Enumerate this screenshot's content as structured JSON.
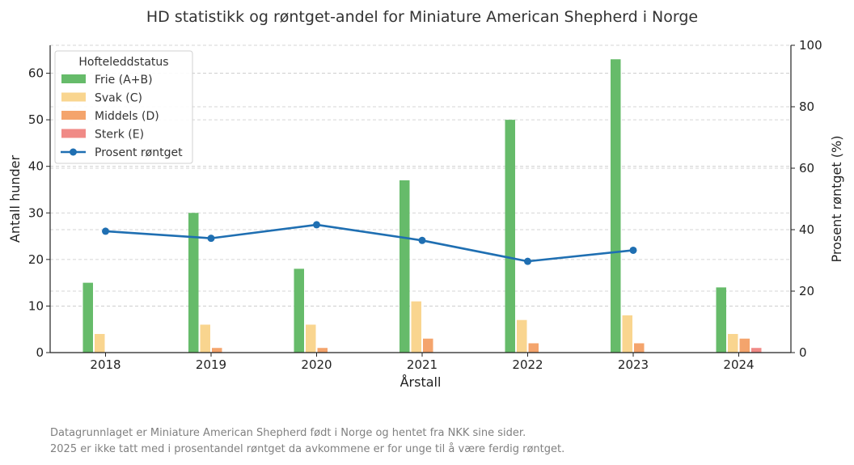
{
  "chart_data": {
    "type": "bar",
    "title": "HD statistikk og røntget-andel for Miniature American Shepherd i Norge",
    "xlabel": "Årstall",
    "ylabel": "Antall hunder",
    "y2label": "Prosent røntget (%)",
    "categories": [
      "2018",
      "2019",
      "2020",
      "2021",
      "2022",
      "2023",
      "2024"
    ],
    "ylim": [
      0,
      66
    ],
    "y2lim": [
      0,
      100
    ],
    "yticks": [
      "0",
      "10",
      "20",
      "30",
      "40",
      "50",
      "60"
    ],
    "y2ticks": [
      "0",
      "20",
      "40",
      "60",
      "80",
      "100"
    ],
    "grid": true,
    "legend_title": "Hofteleddstatus",
    "legend_position": "top-left",
    "series": [
      {
        "name": "Frie (A+B)",
        "type": "bar",
        "color": "#66bb6a",
        "values": [
          15,
          30,
          18,
          37,
          50,
          63,
          14
        ]
      },
      {
        "name": "Svak (C)",
        "type": "bar",
        "color": "#f9d58f",
        "values": [
          4,
          6,
          6,
          11,
          7,
          8,
          4
        ]
      },
      {
        "name": "Middels (D)",
        "type": "bar",
        "color": "#f4a46c",
        "values": [
          0,
          1,
          1,
          3,
          2,
          2,
          3
        ]
      },
      {
        "name": "Sterk (E)",
        "type": "bar",
        "color": "#f08a86",
        "values": [
          0,
          0,
          0,
          0,
          0,
          0,
          1
        ]
      },
      {
        "name": "Prosent røntget",
        "type": "line",
        "axis": "right",
        "color": "#1f6fb2",
        "values": [
          39.5,
          37.2,
          41.6,
          36.5,
          29.7,
          33.3,
          null
        ]
      }
    ]
  },
  "footnotes": [
    "Datagrunnlaget er Miniature American Shepherd født i Norge og hentet fra NKK sine sider.",
    "2025 er ikke tatt med i prosentandel røntget da avkommene er for unge til å være ferdig røntget."
  ]
}
